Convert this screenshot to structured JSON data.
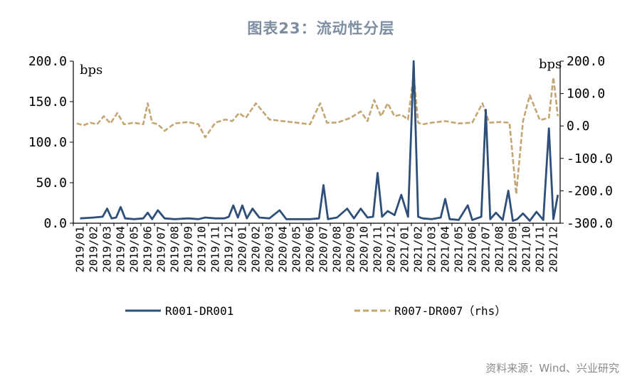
{
  "title": "图表23：流动性分层",
  "source": "资料来源：Wind、兴业研究",
  "chart_data": {
    "type": "line",
    "left_axis": {
      "unit": "bps",
      "ylim": [
        0,
        200
      ],
      "ticks": [
        "0.0",
        "50.0",
        "100.0",
        "150.0",
        "200.0"
      ]
    },
    "right_axis": {
      "unit": "bps",
      "ylim": [
        -300,
        200
      ],
      "ticks": [
        "-300.0",
        "-200.0",
        "-100.0",
        "0.0",
        "100.0",
        "200.0"
      ]
    },
    "x_ticks": [
      "2019/01",
      "2019/02",
      "2019/03",
      "2019/04",
      "2019/05",
      "2019/06",
      "2019/07",
      "2019/08",
      "2019/09",
      "2019/10",
      "2019/11",
      "2019/12",
      "2020/01",
      "2020/02",
      "2020/03",
      "2020/04",
      "2020/05",
      "2020/06",
      "2020/07",
      "2020/08",
      "2020/09",
      "2020/10",
      "2020/11",
      "2020/12",
      "2021/01",
      "2021/02",
      "2021/03",
      "2021/04",
      "2021/05",
      "2021/06",
      "2021/07",
      "2021/08",
      "2021/09",
      "2021/10",
      "2021/11",
      "2021/12"
    ],
    "series": [
      {
        "name": "R001-DR001",
        "axis": "left",
        "color": "#2e4f7a",
        "style": "solid",
        "x": [
          "2019/01",
          "2019/02",
          "2019/03",
          "2019/03",
          "2019/03",
          "2019/04",
          "2019/04",
          "2019/04",
          "2019/05",
          "2019/06",
          "2019/06",
          "2019/06",
          "2019/07",
          "2019/07",
          "2019/08",
          "2019/09",
          "2019/10",
          "2019/10",
          "2019/11",
          "2019/12",
          "2019/12",
          "2019/12",
          "2020/01",
          "2020/01",
          "2020/01",
          "2020/02",
          "2020/02",
          "2020/03",
          "2020/04",
          "2020/04",
          "2020/05",
          "2020/06",
          "2020/07",
          "2020/07",
          "2020/07",
          "2020/08",
          "2020/09",
          "2020/09",
          "2020/10",
          "2020/10",
          "2020/11",
          "2020/11",
          "2020/11",
          "2020/12",
          "2020/12",
          "2021/01",
          "2021/01",
          "2021/02",
          "2021/02",
          "2021/02",
          "2021/03",
          "2021/04",
          "2021/04",
          "2021/04",
          "2021/05",
          "2021/06",
          "2021/06",
          "2021/06",
          "2021/07",
          "2021/07",
          "2021/07",
          "2021/08",
          "2021/08",
          "2021/09",
          "2021/09",
          "2021/09",
          "2021/10",
          "2021/10",
          "2021/11",
          "2021/11",
          "2021/12",
          "2021/12",
          "2021/12"
        ],
        "y": [
          6,
          7,
          8,
          18,
          6,
          7,
          20,
          6,
          5,
          6,
          13,
          5,
          16,
          6,
          5,
          6,
          5,
          7,
          6,
          6,
          8,
          22,
          7,
          22,
          6,
          18,
          7,
          6,
          16,
          5,
          5,
          5,
          6,
          47,
          5,
          7,
          18,
          6,
          18,
          7,
          8,
          62,
          8,
          15,
          10,
          35,
          8,
          200,
          8,
          6,
          5,
          7,
          30,
          5,
          4,
          22,
          4,
          6,
          8,
          140,
          5,
          13,
          4,
          40,
          3,
          5,
          12,
          3,
          14,
          4,
          117,
          5,
          35
        ]
      },
      {
        "name": "R007-DR007（rhs）",
        "axis": "right",
        "color": "#c4a574",
        "style": "dashed",
        "x": [
          "2019/01",
          "2019/01",
          "2019/02",
          "2019/02",
          "2019/03",
          "2019/03",
          "2019/04",
          "2019/04",
          "2019/05",
          "2019/06",
          "2019/06",
          "2019/06",
          "2019/07",
          "2019/07",
          "2019/08",
          "2019/09",
          "2019/10",
          "2019/10",
          "2019/11",
          "2019/12",
          "2019/12",
          "2020/01",
          "2020/01",
          "2020/02",
          "2020/03",
          "2020/04",
          "2020/05",
          "2020/06",
          "2020/07",
          "2020/07",
          "2020/08",
          "2020/09",
          "2020/10",
          "2020/10",
          "2020/11",
          "2020/11",
          "2020/12",
          "2020/12",
          "2021/01",
          "2021/01",
          "2021/02",
          "2021/02",
          "2021/02",
          "2021/03",
          "2021/04",
          "2021/05",
          "2021/06",
          "2021/07",
          "2021/07",
          "2021/08",
          "2021/09",
          "2021/09",
          "2021/10",
          "2021/10",
          "2021/11",
          "2021/12",
          "2021/12",
          "2021/12"
        ],
        "y": [
          8,
          2,
          10,
          5,
          30,
          8,
          40,
          5,
          10,
          5,
          70,
          10,
          5,
          -15,
          8,
          12,
          5,
          -35,
          10,
          20,
          15,
          40,
          25,
          70,
          20,
          15,
          10,
          5,
          70,
          10,
          10,
          25,
          45,
          15,
          80,
          30,
          70,
          30,
          35,
          20,
          160,
          10,
          5,
          10,
          15,
          8,
          10,
          70,
          10,
          12,
          10,
          -210,
          15,
          95,
          18,
          25,
          150,
          30
        ]
      }
    ]
  }
}
